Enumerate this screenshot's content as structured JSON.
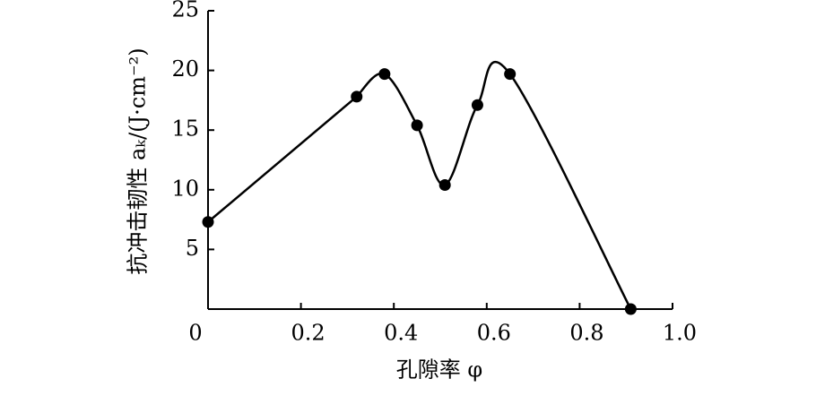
{
  "chart_data": {
    "type": "line",
    "x_label": "孔隙率 φ",
    "y_label": "抗冲击韧性 aₖ/(J·cm⁻²)",
    "x": [
      0,
      0.32,
      0.38,
      0.45,
      0.51,
      0.58,
      0.65,
      0.91
    ],
    "series": [
      {
        "name": "ak",
        "color": "#000000",
        "values": [
          7.3,
          17.8,
          19.7,
          15.4,
          10.4,
          17.1,
          19.7,
          0
        ]
      }
    ],
    "xlim": [
      0,
      1
    ],
    "xticks": [
      0,
      0.2,
      0.4,
      0.6,
      0.8,
      {
        "value": 1,
        "label": "1.0"
      }
    ],
    "ylim": [
      0,
      25
    ],
    "yticks": [
      5,
      10,
      15,
      20,
      25
    ],
    "smooth": true,
    "grid": false
  }
}
